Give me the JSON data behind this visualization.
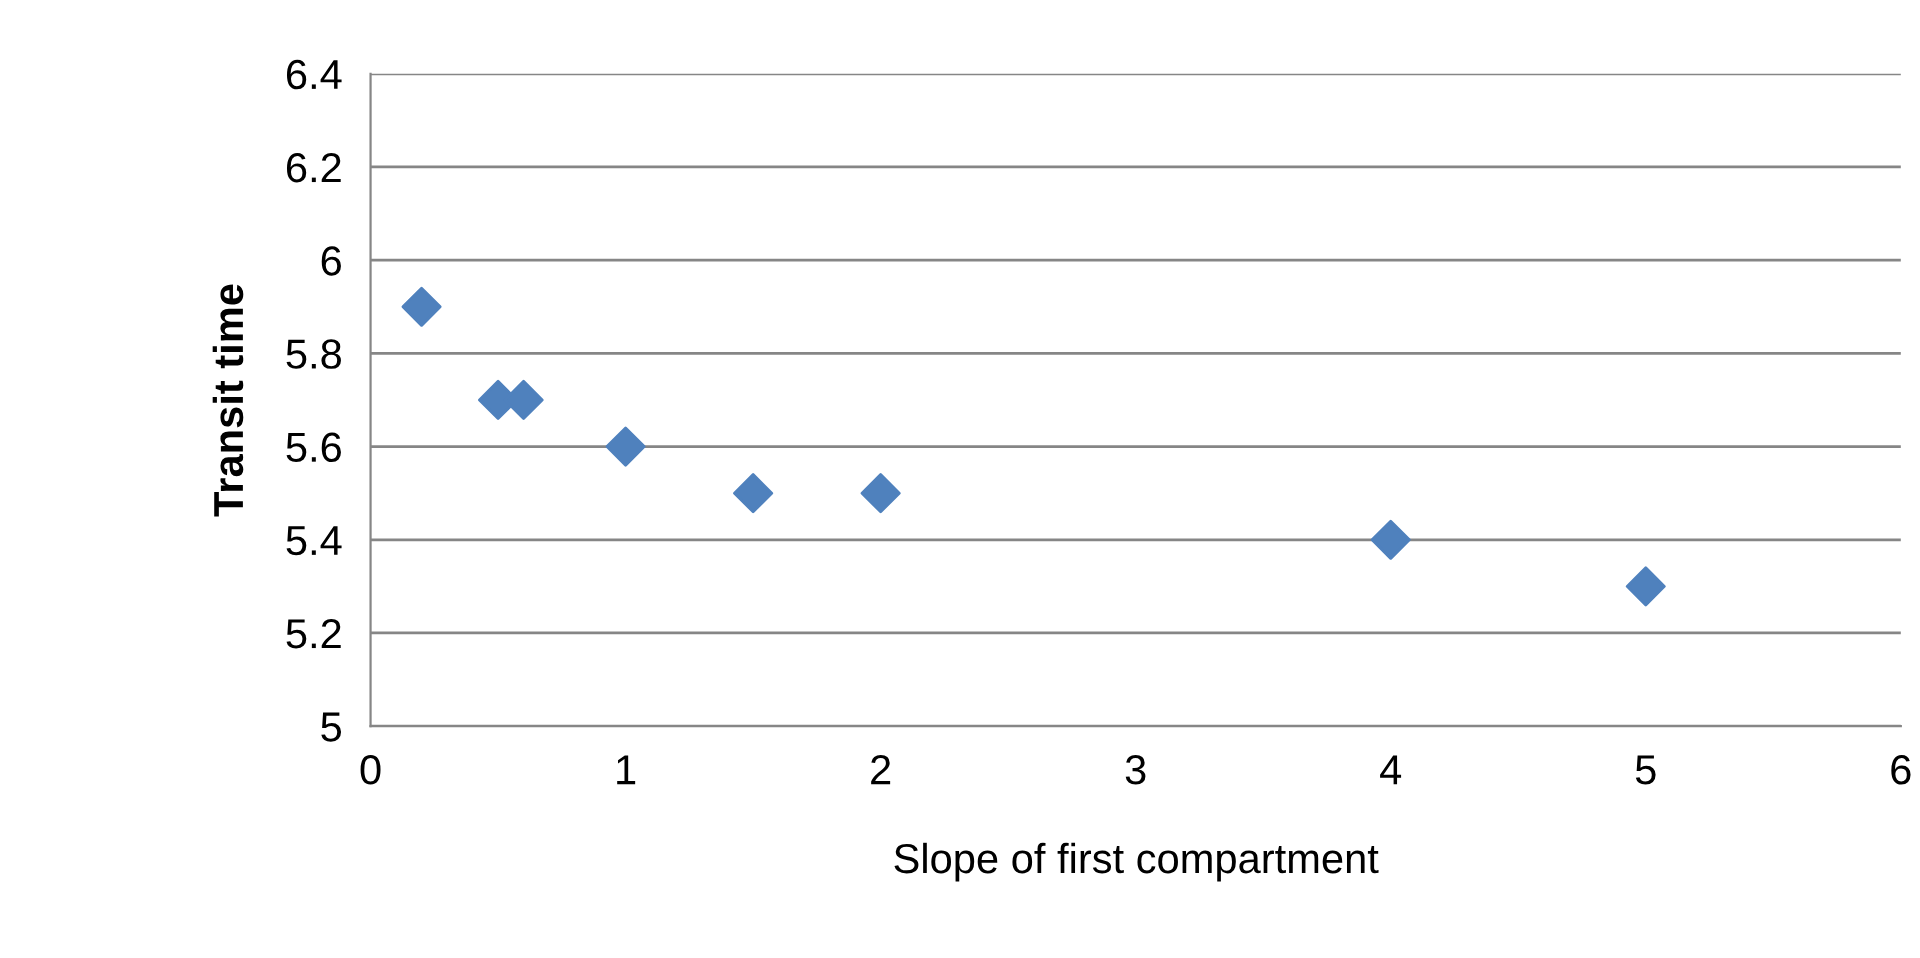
{
  "chart_data": {
    "type": "scatter",
    "xlabel": "Slope of first compartment",
    "ylabel": "Transit time",
    "x": [
      0.2,
      0.5,
      0.6,
      1,
      1.5,
      2,
      4,
      5
    ],
    "series": [
      {
        "color": "#4f81bd",
        "values": [
          5.9,
          5.7,
          5.7,
          5.6,
          5.5,
          5.5,
          5.4,
          5.3
        ]
      }
    ],
    "xlim": [
      0,
      6
    ],
    "xticks": [
      0,
      1,
      2,
      3,
      4,
      5,
      6
    ],
    "ylim": [
      5,
      6.4
    ],
    "yticks": [
      5,
      5.2,
      5.4,
      5.6,
      5.8,
      6,
      6.2,
      6.4
    ],
    "grid": "y",
    "marker": "diamond"
  }
}
